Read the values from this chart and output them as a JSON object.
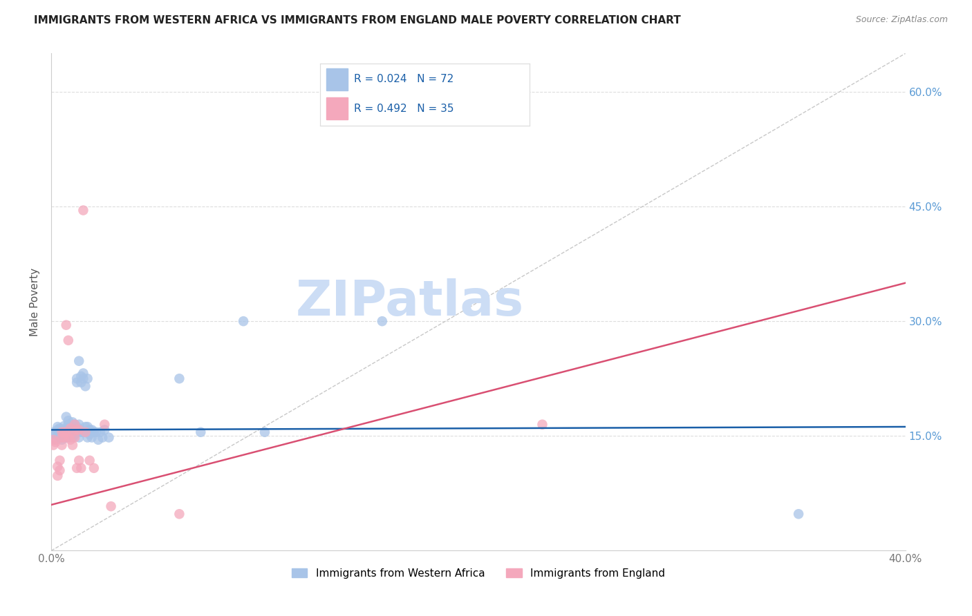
{
  "title": "IMMIGRANTS FROM WESTERN AFRICA VS IMMIGRANTS FROM ENGLAND MALE POVERTY CORRELATION CHART",
  "source": "Source: ZipAtlas.com",
  "ylabel": "Male Poverty",
  "legend_blue_label": "Immigrants from Western Africa",
  "legend_pink_label": "Immigrants from England",
  "legend_blue_R": "R = 0.024",
  "legend_blue_N": "N = 72",
  "legend_pink_R": "R = 0.492",
  "legend_pink_N": "N = 35",
  "blue_color": "#a8c4e8",
  "pink_color": "#f4a8bc",
  "blue_line_color": "#1a5fa8",
  "pink_line_color": "#d94f72",
  "dashed_line_color": "#c8c8c8",
  "legend_text_color": "#1a5fa8",
  "title_color": "#222222",
  "watermark_text": "ZIPatlas",
  "watermark_color": "#ccddf5",
  "blue_scatter": [
    [
      0.001,
      0.155
    ],
    [
      0.002,
      0.152
    ],
    [
      0.002,
      0.145
    ],
    [
      0.003,
      0.158
    ],
    [
      0.003,
      0.162
    ],
    [
      0.003,
      0.15
    ],
    [
      0.004,
      0.155
    ],
    [
      0.004,
      0.148
    ],
    [
      0.004,
      0.16
    ],
    [
      0.005,
      0.155
    ],
    [
      0.005,
      0.152
    ],
    [
      0.005,
      0.148
    ],
    [
      0.005,
      0.145
    ],
    [
      0.006,
      0.158
    ],
    [
      0.006,
      0.155
    ],
    [
      0.006,
      0.163
    ],
    [
      0.006,
      0.148
    ],
    [
      0.007,
      0.16
    ],
    [
      0.007,
      0.155
    ],
    [
      0.007,
      0.175
    ],
    [
      0.007,
      0.148
    ],
    [
      0.008,
      0.165
    ],
    [
      0.008,
      0.17
    ],
    [
      0.008,
      0.158
    ],
    [
      0.008,
      0.148
    ],
    [
      0.009,
      0.162
    ],
    [
      0.009,
      0.155
    ],
    [
      0.009,
      0.15
    ],
    [
      0.01,
      0.168
    ],
    [
      0.01,
      0.16
    ],
    [
      0.01,
      0.155
    ],
    [
      0.01,
      0.148
    ],
    [
      0.011,
      0.165
    ],
    [
      0.011,
      0.158
    ],
    [
      0.011,
      0.152
    ],
    [
      0.012,
      0.225
    ],
    [
      0.012,
      0.22
    ],
    [
      0.012,
      0.162
    ],
    [
      0.012,
      0.155
    ],
    [
      0.013,
      0.248
    ],
    [
      0.013,
      0.165
    ],
    [
      0.013,
      0.158
    ],
    [
      0.013,
      0.148
    ],
    [
      0.014,
      0.228
    ],
    [
      0.014,
      0.22
    ],
    [
      0.014,
      0.155
    ],
    [
      0.015,
      0.232
    ],
    [
      0.015,
      0.225
    ],
    [
      0.015,
      0.155
    ],
    [
      0.016,
      0.215
    ],
    [
      0.016,
      0.162
    ],
    [
      0.016,
      0.155
    ],
    [
      0.017,
      0.225
    ],
    [
      0.017,
      0.162
    ],
    [
      0.017,
      0.148
    ],
    [
      0.018,
      0.158
    ],
    [
      0.018,
      0.152
    ],
    [
      0.019,
      0.158
    ],
    [
      0.019,
      0.148
    ],
    [
      0.02,
      0.155
    ],
    [
      0.021,
      0.155
    ],
    [
      0.022,
      0.145
    ],
    [
      0.023,
      0.155
    ],
    [
      0.024,
      0.148
    ],
    [
      0.025,
      0.158
    ],
    [
      0.027,
      0.148
    ],
    [
      0.06,
      0.225
    ],
    [
      0.07,
      0.155
    ],
    [
      0.09,
      0.3
    ],
    [
      0.1,
      0.155
    ],
    [
      0.155,
      0.3
    ],
    [
      0.35,
      0.048
    ]
  ],
  "pink_scatter": [
    [
      0.001,
      0.145
    ],
    [
      0.001,
      0.138
    ],
    [
      0.002,
      0.142
    ],
    [
      0.003,
      0.11
    ],
    [
      0.003,
      0.098
    ],
    [
      0.004,
      0.105
    ],
    [
      0.004,
      0.118
    ],
    [
      0.005,
      0.155
    ],
    [
      0.005,
      0.148
    ],
    [
      0.005,
      0.138
    ],
    [
      0.006,
      0.155
    ],
    [
      0.006,
      0.148
    ],
    [
      0.007,
      0.295
    ],
    [
      0.007,
      0.155
    ],
    [
      0.008,
      0.275
    ],
    [
      0.008,
      0.148
    ],
    [
      0.009,
      0.16
    ],
    [
      0.009,
      0.145
    ],
    [
      0.01,
      0.155
    ],
    [
      0.01,
      0.138
    ],
    [
      0.011,
      0.165
    ],
    [
      0.011,
      0.148
    ],
    [
      0.012,
      0.158
    ],
    [
      0.012,
      0.108
    ],
    [
      0.013,
      0.158
    ],
    [
      0.013,
      0.118
    ],
    [
      0.014,
      0.108
    ],
    [
      0.015,
      0.445
    ],
    [
      0.016,
      0.155
    ],
    [
      0.018,
      0.118
    ],
    [
      0.02,
      0.108
    ],
    [
      0.025,
      0.165
    ],
    [
      0.028,
      0.058
    ],
    [
      0.06,
      0.048
    ],
    [
      0.23,
      0.165
    ]
  ],
  "xlim": [
    0.0,
    0.4
  ],
  "ylim": [
    0.0,
    0.65
  ],
  "blue_trendline": [
    [
      0.0,
      0.158
    ],
    [
      0.4,
      0.162
    ]
  ],
  "pink_trendline": [
    [
      0.0,
      0.06
    ],
    [
      0.4,
      0.35
    ]
  ],
  "dashed_trendline": [
    [
      0.0,
      0.0
    ],
    [
      0.4,
      0.65
    ]
  ]
}
